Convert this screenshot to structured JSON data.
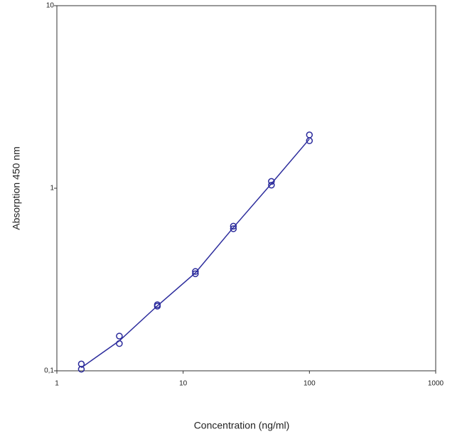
{
  "chart_data": {
    "type": "scatter",
    "x_label": "Concentration (ng/ml)",
    "y_label": "Absorption 450 nm",
    "xscale": "log",
    "yscale": "log",
    "xlim": [
      1,
      1000
    ],
    "ylim": [
      0.1,
      10
    ],
    "xticks": [
      1,
      10,
      100,
      1000
    ],
    "yticks": [
      {
        "value": 0.1,
        "label": "0,1"
      },
      1,
      10
    ],
    "color": "#2b2b9c",
    "x": [
      1.5625,
      1.5625,
      3.125,
      3.125,
      6.25,
      6.25,
      12.5,
      12.5,
      25,
      25,
      50,
      50,
      100,
      100
    ],
    "values": [
      0.109,
      0.102,
      0.155,
      0.141,
      0.23,
      0.226,
      0.35,
      0.34,
      0.62,
      0.6,
      1.09,
      1.04,
      1.96,
      1.82
    ],
    "fit": {
      "x": [
        1.5625,
        3.125,
        6.25,
        12.5,
        25,
        50,
        100
      ],
      "values": [
        0.104,
        0.146,
        0.227,
        0.344,
        0.61,
        1.06,
        1.86
      ]
    }
  }
}
